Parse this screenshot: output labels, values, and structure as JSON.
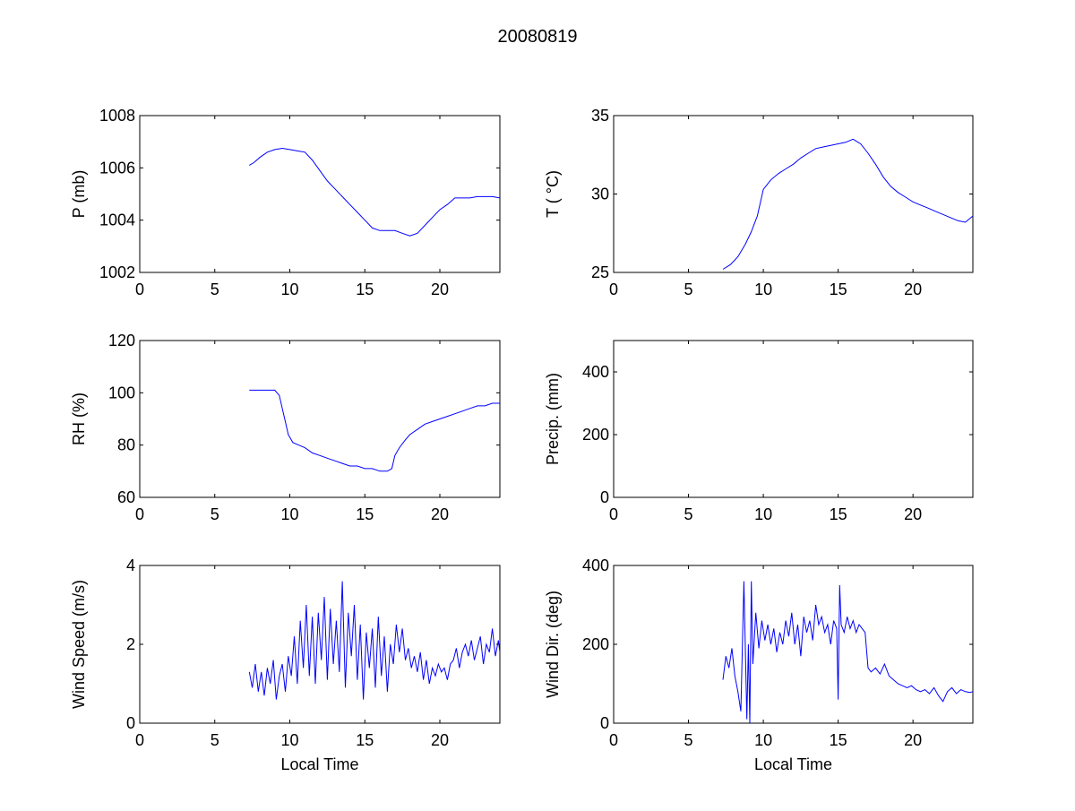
{
  "figure": {
    "title": "20080819",
    "line_color": "#0000ff",
    "axes_color": "#000000",
    "background": "#ffffff"
  },
  "chart_data": [
    {
      "type": "line",
      "ylabel": "P (mb)",
      "xlabel": "",
      "xlim": [
        0,
        24
      ],
      "ylim": [
        1002,
        1008
      ],
      "xticks": [
        0,
        5,
        10,
        15,
        20
      ],
      "yticks": [
        1002,
        1004,
        1006,
        1008
      ],
      "ytick_labels": [
        "1002",
        "1004",
        "1006",
        "1008"
      ],
      "grid": false,
      "series": [
        {
          "x": [
            7.3,
            7.6,
            8.0,
            8.5,
            9.0,
            9.5,
            10.0,
            10.5,
            11.0,
            11.5,
            12.0,
            12.5,
            13.0,
            13.5,
            14.0,
            14.5,
            15.0,
            15.5,
            16.0,
            16.5,
            17.0,
            17.5,
            18.0,
            18.5,
            19.0,
            19.5,
            20.0,
            20.5,
            21.0,
            21.5,
            22.0,
            22.5,
            23.0,
            23.5,
            24.0
          ],
          "y": [
            1006.1,
            1006.2,
            1006.4,
            1006.6,
            1006.7,
            1006.75,
            1006.7,
            1006.65,
            1006.6,
            1006.3,
            1005.9,
            1005.5,
            1005.2,
            1004.9,
            1004.6,
            1004.3,
            1004.0,
            1003.7,
            1003.6,
            1003.6,
            1003.6,
            1003.5,
            1003.4,
            1003.5,
            1003.8,
            1004.1,
            1004.4,
            1004.6,
            1004.85,
            1004.85,
            1004.85,
            1004.9,
            1004.9,
            1004.9,
            1004.85
          ]
        }
      ]
    },
    {
      "type": "line",
      "ylabel": "T ( °C)",
      "xlabel": "",
      "xlim": [
        0,
        24
      ],
      "ylim": [
        25,
        35
      ],
      "xticks": [
        0,
        5,
        10,
        15,
        20
      ],
      "yticks": [
        25,
        30,
        35
      ],
      "ytick_labels": [
        "25",
        "30",
        "35"
      ],
      "grid": false,
      "series": [
        {
          "x": [
            7.3,
            7.8,
            8.3,
            8.8,
            9.2,
            9.6,
            10.0,
            10.5,
            11.0,
            11.5,
            12.0,
            12.5,
            13.0,
            13.5,
            14.0,
            14.5,
            15.0,
            15.5,
            16.0,
            16.5,
            17.0,
            17.5,
            18.0,
            18.5,
            19.0,
            19.5,
            20.0,
            20.5,
            21.0,
            21.5,
            22.0,
            22.5,
            23.0,
            23.5,
            24.0
          ],
          "y": [
            25.2,
            25.5,
            26.0,
            26.8,
            27.6,
            28.6,
            30.3,
            30.9,
            31.3,
            31.6,
            31.9,
            32.3,
            32.6,
            32.9,
            33.0,
            33.1,
            33.2,
            33.3,
            33.5,
            33.2,
            32.6,
            31.9,
            31.1,
            30.5,
            30.1,
            29.8,
            29.5,
            29.3,
            29.1,
            28.9,
            28.7,
            28.5,
            28.3,
            28.2,
            28.6
          ]
        }
      ]
    },
    {
      "type": "line",
      "ylabel": "RH (%)",
      "xlabel": "",
      "xlim": [
        0,
        24
      ],
      "ylim": [
        60,
        120
      ],
      "xticks": [
        0,
        5,
        10,
        15,
        20
      ],
      "yticks": [
        60,
        80,
        100,
        120
      ],
      "ytick_labels": [
        "60",
        "80",
        "100",
        "120"
      ],
      "grid": false,
      "series": [
        {
          "x": [
            7.3,
            8.0,
            8.5,
            9.0,
            9.3,
            9.5,
            9.7,
            9.9,
            10.2,
            10.6,
            11.0,
            11.5,
            12.0,
            12.5,
            13.0,
            13.5,
            14.0,
            14.5,
            15.0,
            15.5,
            16.0,
            16.5,
            16.8,
            17.0,
            17.3,
            17.7,
            18.0,
            18.5,
            19.0,
            19.5,
            20.0,
            20.5,
            21.0,
            21.5,
            22.0,
            22.5,
            23.0,
            23.5,
            24.0
          ],
          "y": [
            101,
            101,
            101,
            101,
            99,
            94,
            89,
            84,
            81,
            80,
            79,
            77,
            76,
            75,
            74,
            73,
            72,
            72,
            71,
            71,
            70,
            70,
            71,
            76,
            79,
            82,
            84,
            86,
            88,
            89,
            90,
            91,
            92,
            93,
            94,
            95,
            95,
            96,
            96
          ]
        }
      ]
    },
    {
      "type": "line",
      "ylabel": "Precip. (mm)",
      "xlabel": "",
      "xlim": [
        0,
        24
      ],
      "ylim": [
        0,
        500
      ],
      "xticks": [
        0,
        5,
        10,
        15,
        20
      ],
      "yticks": [
        0,
        200,
        400
      ],
      "ytick_labels": [
        "0",
        "200",
        "400"
      ],
      "grid": false,
      "series": []
    },
    {
      "type": "line",
      "ylabel": "Wind Speed (m/s)",
      "xlabel": "Local Time",
      "xlim": [
        0,
        24
      ],
      "ylim": [
        0,
        4
      ],
      "xticks": [
        0,
        5,
        10,
        15,
        20
      ],
      "yticks": [
        0,
        2,
        4
      ],
      "ytick_labels": [
        "0",
        "2",
        "4"
      ],
      "grid": false,
      "series": [
        {
          "x": [
            7.3,
            7.5,
            7.7,
            7.9,
            8.1,
            8.3,
            8.5,
            8.7,
            8.9,
            9.1,
            9.3,
            9.5,
            9.7,
            9.9,
            10.1,
            10.3,
            10.5,
            10.7,
            10.9,
            11.1,
            11.3,
            11.5,
            11.7,
            11.9,
            12.1,
            12.3,
            12.5,
            12.7,
            12.9,
            13.1,
            13.3,
            13.5,
            13.7,
            13.9,
            14.1,
            14.3,
            14.5,
            14.7,
            14.9,
            15.1,
            15.3,
            15.5,
            15.7,
            15.9,
            16.1,
            16.3,
            16.5,
            16.7,
            16.9,
            17.1,
            17.3,
            17.5,
            17.7,
            17.9,
            18.1,
            18.3,
            18.5,
            18.7,
            18.9,
            19.1,
            19.3,
            19.5,
            19.7,
            19.9,
            20.1,
            20.3,
            20.5,
            20.7,
            20.9,
            21.1,
            21.3,
            21.5,
            21.7,
            21.9,
            22.1,
            22.3,
            22.5,
            22.7,
            22.9,
            23.1,
            23.3,
            23.5,
            23.7,
            23.9,
            24.0
          ],
          "y": [
            1.3,
            0.9,
            1.5,
            0.8,
            1.3,
            0.7,
            1.4,
            1.0,
            1.6,
            0.6,
            1.2,
            1.5,
            0.8,
            1.7,
            1.2,
            2.2,
            1.0,
            2.6,
            1.4,
            3.0,
            1.2,
            2.7,
            1.0,
            2.8,
            1.6,
            3.2,
            1.1,
            2.9,
            1.5,
            2.6,
            1.3,
            3.6,
            0.9,
            2.8,
            1.7,
            3.0,
            1.1,
            2.5,
            0.6,
            2.3,
            1.4,
            2.4,
            0.9,
            2.7,
            1.2,
            2.2,
            0.8,
            2.0,
            1.5,
            2.5,
            1.8,
            2.4,
            1.6,
            1.9,
            1.4,
            1.7,
            1.3,
            1.8,
            1.1,
            1.6,
            1.0,
            1.4,
            1.2,
            1.5,
            1.3,
            1.4,
            1.1,
            1.5,
            1.6,
            1.9,
            1.4,
            1.8,
            2.0,
            1.7,
            2.1,
            1.6,
            1.9,
            2.2,
            1.5,
            2.0,
            1.8,
            2.4,
            1.7,
            2.1,
            1.8
          ]
        }
      ]
    },
    {
      "type": "line",
      "ylabel": "Wind Dir. (deg)",
      "xlabel": "Local Time",
      "xlim": [
        0,
        24
      ],
      "ylim": [
        0,
        400
      ],
      "xticks": [
        0,
        5,
        10,
        15,
        20
      ],
      "yticks": [
        0,
        200,
        400
      ],
      "ytick_labels": [
        "0",
        "200",
        "400"
      ],
      "grid": false,
      "series": [
        {
          "x": [
            7.3,
            7.5,
            7.7,
            7.9,
            8.1,
            8.3,
            8.5,
            8.7,
            8.9,
            9.0,
            9.1,
            9.2,
            9.3,
            9.5,
            9.7,
            9.9,
            10.1,
            10.3,
            10.5,
            10.7,
            10.9,
            11.1,
            11.3,
            11.5,
            11.7,
            11.9,
            12.1,
            12.3,
            12.5,
            12.7,
            12.9,
            13.1,
            13.3,
            13.5,
            13.7,
            13.9,
            14.1,
            14.3,
            14.5,
            14.7,
            14.9,
            15.0,
            15.1,
            15.2,
            15.4,
            15.6,
            15.8,
            16.0,
            16.2,
            16.4,
            16.6,
            16.8,
            17.0,
            17.2,
            17.5,
            17.8,
            18.1,
            18.4,
            18.7,
            19.0,
            19.3,
            19.6,
            19.9,
            20.2,
            20.5,
            20.8,
            21.1,
            21.4,
            21.7,
            22.0,
            22.3,
            22.6,
            22.9,
            23.2,
            23.5,
            23.8,
            24.0
          ],
          "y": [
            110,
            170,
            140,
            190,
            120,
            80,
            30,
            360,
            10,
            200,
            0,
            360,
            150,
            280,
            190,
            260,
            210,
            250,
            200,
            240,
            180,
            230,
            200,
            260,
            220,
            280,
            200,
            250,
            170,
            270,
            230,
            260,
            210,
            300,
            250,
            270,
            230,
            250,
            200,
            260,
            240,
            60,
            350,
            250,
            230,
            270,
            240,
            260,
            230,
            250,
            240,
            230,
            140,
            130,
            140,
            125,
            150,
            120,
            110,
            100,
            95,
            90,
            95,
            85,
            80,
            85,
            75,
            90,
            70,
            55,
            80,
            90,
            75,
            85,
            80,
            78,
            80
          ]
        }
      ]
    }
  ]
}
